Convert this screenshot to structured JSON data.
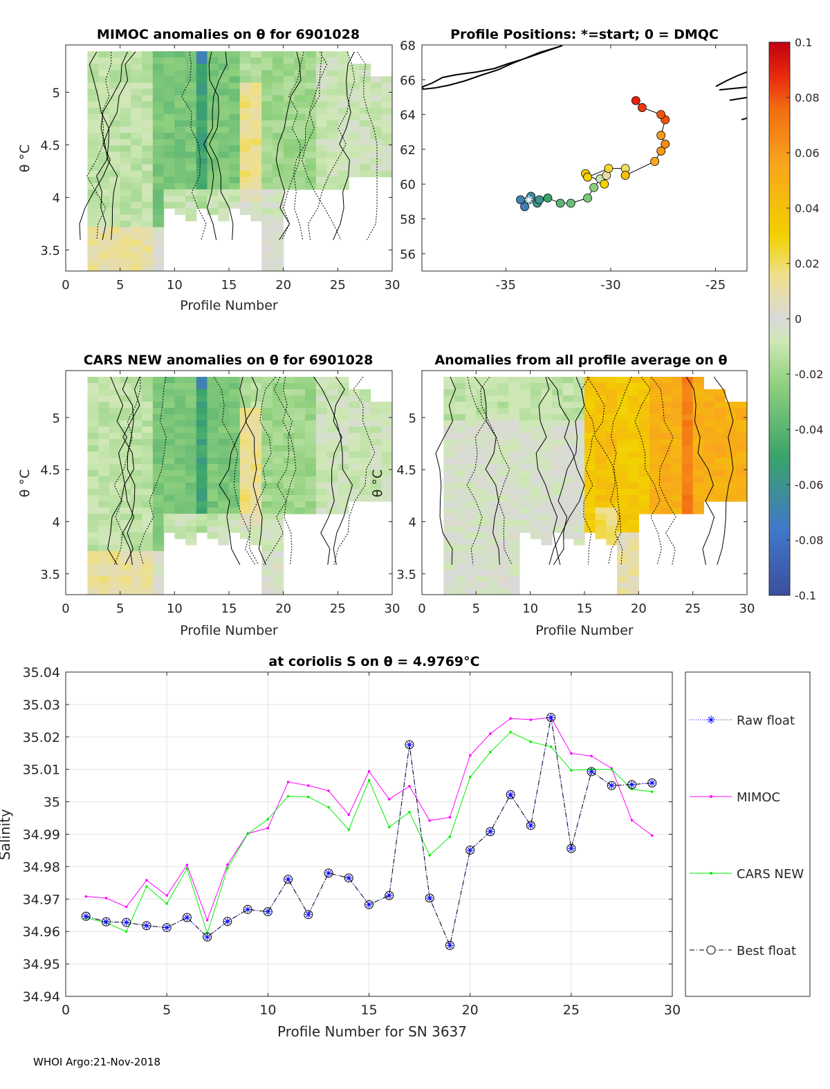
{
  "footer": "WHOI Argo:21-Nov-2018",
  "colorbar": {
    "ticks": [
      "0.1",
      "0.08",
      "0.06",
      "0.04",
      "0.02",
      "0",
      "-0.02",
      "-0.04",
      "-0.06",
      "-0.08",
      "-0.1"
    ],
    "range": [
      -0.1,
      0.1
    ]
  },
  "chart_data": [
    {
      "type": "heatmap",
      "title": "MIMOC anomalies on θ  for 6901028",
      "xlabel": "Profile Number",
      "ylabel": "θ °C",
      "xticks": [
        "0",
        "5",
        "10",
        "15",
        "20",
        "25",
        "30"
      ],
      "yticks": [
        "5",
        "4.5",
        "4",
        "3.5"
      ],
      "xlim": [
        0,
        30
      ],
      "ylim": [
        3.3,
        5.45
      ],
      "description": "anomaly field mostly -0.02 to -0.04 (green), strongest near profile 12"
    },
    {
      "type": "scatter",
      "title": "Profile Positions: *=start; 0 = DMQC",
      "xticks": [
        "-35",
        "-30",
        "-25"
      ],
      "yticks": [
        "68",
        "66",
        "64",
        "62",
        "60",
        "58",
        "56"
      ],
      "xlim": [
        -39,
        -23.5
      ],
      "ylim": [
        55,
        68
      ],
      "track": [
        {
          "lon": -33.9,
          "lat": 59.1,
          "anom": -0.06
        },
        {
          "lon": -34.3,
          "lat": 59.1,
          "anom": -0.07
        },
        {
          "lon": -34.1,
          "lat": 58.7,
          "anom": -0.07
        },
        {
          "lon": -33.8,
          "lat": 59.3,
          "anom": -0.065
        },
        {
          "lon": -33.5,
          "lat": 58.9,
          "anom": -0.06
        },
        {
          "lon": -33.4,
          "lat": 59.1,
          "anom": -0.06
        },
        {
          "lon": -33.0,
          "lat": 59.2,
          "anom": -0.05
        },
        {
          "lon": -32.4,
          "lat": 58.9,
          "anom": -0.04
        },
        {
          "lon": -31.9,
          "lat": 58.9,
          "anom": -0.035
        },
        {
          "lon": -31.1,
          "lat": 59.2,
          "anom": -0.03
        },
        {
          "lon": -30.8,
          "lat": 59.8,
          "anom": -0.025
        },
        {
          "lon": -30.5,
          "lat": 60.3,
          "anom": -0.01
        },
        {
          "lon": -30.2,
          "lat": 60.5,
          "anom": 0.01
        },
        {
          "lon": -30.3,
          "lat": 60.0,
          "anom": 0.03
        },
        {
          "lon": -31.2,
          "lat": 60.6,
          "anom": 0.035
        },
        {
          "lon": -31.1,
          "lat": 60.4,
          "anom": 0.03
        },
        {
          "lon": -30.1,
          "lat": 60.9,
          "anom": 0.025
        },
        {
          "lon": -29.3,
          "lat": 60.9,
          "anom": 0.02
        },
        {
          "lon": -29.3,
          "lat": 60.5,
          "anom": 0.04
        },
        {
          "lon": -27.9,
          "lat": 61.3,
          "anom": 0.055
        },
        {
          "lon": -27.6,
          "lat": 61.9,
          "anom": 0.06
        },
        {
          "lon": -27.4,
          "lat": 62.3,
          "anom": 0.065
        },
        {
          "lon": -27.6,
          "lat": 62.8,
          "anom": 0.06
        },
        {
          "lon": -27.4,
          "lat": 63.7,
          "anom": 0.08
        },
        {
          "lon": -27.6,
          "lat": 64.0,
          "anom": 0.08
        },
        {
          "lon": -28.5,
          "lat": 64.4,
          "anom": 0.085
        },
        {
          "lon": -28.8,
          "lat": 64.8,
          "anom": 0.09
        }
      ]
    },
    {
      "type": "heatmap",
      "title": "CARS NEW anomalies on θ for 6901028",
      "xlabel": "Profile Number",
      "ylabel": "θ °C",
      "xticks": [
        "0",
        "5",
        "10",
        "15",
        "20",
        "25",
        "30"
      ],
      "yticks": [
        "5",
        "4.5",
        "4",
        "3.5"
      ],
      "xlim": [
        0,
        30
      ],
      "ylim": [
        3.3,
        5.45
      ]
    },
    {
      "type": "heatmap",
      "title": "Anomalies from all profile average on θ",
      "xlabel": "Profile Number",
      "ylabel": "θ °C",
      "xticks": [
        "0",
        "5",
        "10",
        "15",
        "20",
        "25",
        "30"
      ],
      "yticks": [
        "5",
        "4.5",
        "4",
        "3.5"
      ],
      "xlim": [
        0,
        30
      ],
      "ylim": [
        3.3,
        5.45
      ],
      "description": "near-zero anomalies for profiles 1-15, positive 0.03-0.07 for profiles 16-28"
    },
    {
      "type": "line",
      "title": "at coriolis S on θ = 4.9769°C",
      "xlabel": "Profile Number for SN 3637",
      "ylabel": "Salinity",
      "xlim": [
        0,
        30
      ],
      "ylim": [
        34.94,
        35.04
      ],
      "xticks": [
        "0",
        "5",
        "10",
        "15",
        "20",
        "25",
        "30"
      ],
      "yticks": [
        "35.04",
        "35.03",
        "35.02",
        "35.01",
        "35",
        "34.99",
        "34.98",
        "34.97",
        "34.96",
        "34.95",
        "34.94"
      ],
      "x": [
        1,
        2,
        3,
        4,
        5,
        6,
        7,
        8,
        9,
        10,
        11,
        12,
        13,
        14,
        15,
        16,
        17,
        18,
        19,
        20,
        21,
        22,
        23,
        24,
        25,
        26,
        27,
        28,
        29
      ],
      "series": [
        {
          "name": "Raw float",
          "color": "#0000ff",
          "values": [
            34.9647,
            34.963,
            34.9628,
            34.9618,
            34.9612,
            34.9643,
            34.9583,
            34.9631,
            34.9668,
            34.9661,
            34.9761,
            34.9652,
            34.978,
            34.9765,
            34.9683,
            34.9711,
            35.0176,
            34.9703,
            34.9557,
            34.9851,
            34.9908,
            35.0022,
            34.9927,
            35.026,
            34.9856,
            35.0093,
            35.005,
            35.0053,
            35.0058
          ]
        },
        {
          "name": "MIMOC",
          "color": "#ff00ff",
          "values": [
            34.9708,
            34.9703,
            34.9676,
            34.9758,
            34.9711,
            34.9805,
            34.9635,
            34.9806,
            34.9902,
            34.9919,
            35.0061,
            35.005,
            35.0034,
            34.996,
            35.0094,
            35.0008,
            35.0048,
            34.9942,
            34.9952,
            35.0143,
            35.021,
            35.0257,
            35.0253,
            35.026,
            35.0149,
            35.0141,
            35.0103,
            34.9943,
            34.9896
          ]
        },
        {
          "name": "CARS NEW",
          "color": "#00ee00",
          "values": [
            34.9642,
            34.9627,
            34.96,
            34.9739,
            34.9686,
            34.9794,
            34.9594,
            34.9795,
            34.9901,
            34.9946,
            35.0017,
            35.0015,
            34.9983,
            34.9914,
            35.0066,
            34.9922,
            34.9968,
            34.9835,
            34.9892,
            35.0076,
            35.0153,
            35.0215,
            35.0185,
            35.017,
            35.0097,
            35.01,
            35.01,
            35.0039,
            35.0031
          ]
        },
        {
          "name": "Best float",
          "color": "#000000",
          "values": [
            34.9647,
            34.963,
            34.9628,
            34.9618,
            34.9612,
            34.9643,
            34.9583,
            34.9631,
            34.9668,
            34.9661,
            34.9761,
            34.9652,
            34.978,
            34.9765,
            34.9683,
            34.9711,
            35.0176,
            34.9703,
            34.9557,
            34.9851,
            34.9908,
            35.0022,
            34.9927,
            35.026,
            34.9856,
            35.0093,
            35.005,
            35.0053,
            35.0058
          ]
        }
      ],
      "legend": [
        "Raw float",
        "MIMOC",
        "CARS NEW",
        "Best float"
      ],
      "legend_position": "right"
    }
  ]
}
